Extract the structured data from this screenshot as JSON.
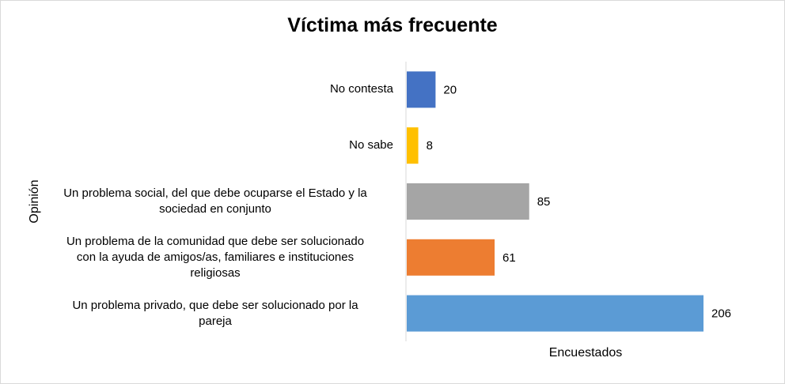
{
  "chart_data": {
    "type": "bar",
    "orientation": "horizontal",
    "title": "Víctima más frecuente",
    "xlabel": "Encuestados",
    "ylabel": "Opinión",
    "xlim": [
      0,
      220
    ],
    "grid": false,
    "legend": "none",
    "categories": [
      "No contesta",
      "No sabe",
      "Un problema social, del que debe ocuparse el Estado y la sociedad en conjunto",
      "Un problema de la comunidad que debe ser solucionado con la ayuda de amigos/as, familiares e instituciones religiosas",
      "Un problema privado, que debe ser solucionado por la pareja"
    ],
    "category_lines": [
      [
        "No contesta"
      ],
      [
        "No sabe"
      ],
      [
        "Un problema social, del que debe ocuparse el Estado y la",
        "sociedad en conjunto"
      ],
      [
        "Un problema de la comunidad que debe ser solucionado",
        "con la ayuda de amigos/as, familiares e instituciones",
        "religiosas"
      ],
      [
        "Un problema privado, que debe ser solucionado por la",
        "pareja"
      ]
    ],
    "values": [
      20,
      8,
      85,
      61,
      206
    ],
    "data_labels": [
      "20",
      "8",
      "85",
      "61",
      "206"
    ],
    "colors": [
      "#4472c4",
      "#ffc000",
      "#a5a5a5",
      "#ed7d31",
      "#5b9bd5"
    ]
  }
}
